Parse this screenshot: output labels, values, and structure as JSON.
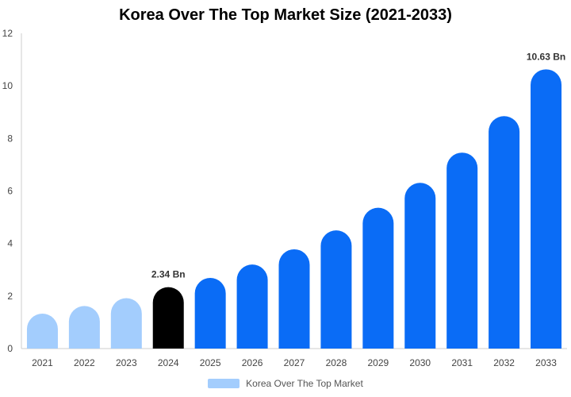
{
  "chart_data": {
    "type": "bar",
    "title": "Korea Over The Top Market Size (2021-2033)",
    "xlabel": "",
    "ylabel": "",
    "categories": [
      "2021",
      "2022",
      "2023",
      "2024",
      "2025",
      "2026",
      "2027",
      "2028",
      "2029",
      "2030",
      "2031",
      "2032",
      "2033"
    ],
    "series": [
      {
        "name": "Korea Over The Top Market",
        "values": [
          1.33,
          1.62,
          1.92,
          2.34,
          2.69,
          3.2,
          3.78,
          4.5,
          5.36,
          6.31,
          7.46,
          8.85,
          10.63
        ]
      }
    ],
    "ylim": [
      0,
      12
    ],
    "yticks": [
      0,
      2,
      4,
      6,
      8,
      10,
      12
    ],
    "grid": false,
    "legend_position": "bottom",
    "data_labels": [
      {
        "category": "2024",
        "text": "2.34 Bn"
      },
      {
        "category": "2033",
        "text": "10.63 Bn"
      }
    ],
    "colors": {
      "historical": "#a3cdfd",
      "current": "#000000",
      "forecast": "#0a6cf6",
      "axis": "#cccccc",
      "legend_swatch": "#a3cdfd"
    },
    "bar_color_by_category": {
      "2021": "#a3cdfd",
      "2022": "#a3cdfd",
      "2023": "#a3cdfd",
      "2024": "#000000",
      "2025": "#0a6cf6",
      "2026": "#0a6cf6",
      "2027": "#0a6cf6",
      "2028": "#0a6cf6",
      "2029": "#0a6cf6",
      "2030": "#0a6cf6",
      "2031": "#0a6cf6",
      "2032": "#0a6cf6",
      "2033": "#0a6cf6"
    }
  }
}
